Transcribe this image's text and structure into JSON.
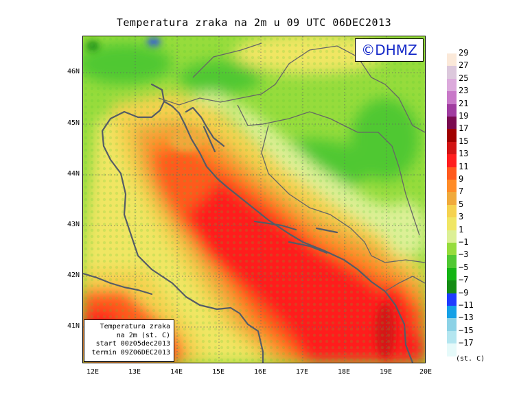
{
  "title": "Temperatura zraka na 2m u 09 UTC 06DEC2013",
  "logo": "©DHMZ",
  "info_box": {
    "line1": "Temperatura zraka",
    "line2": "na 2m (st. C)",
    "line3": "start 00z05dec2013",
    "line4": "termin 09Z06DEC2013"
  },
  "axes": {
    "longitude_labels": [
      "12E",
      "13E",
      "14E",
      "15E",
      "16E",
      "17E",
      "18E",
      "19E",
      "20E"
    ],
    "latitude_labels": [
      "46N",
      "45N",
      "44N",
      "43N",
      "42N",
      "41N"
    ]
  },
  "legend": {
    "unit": "(st. C)",
    "labels": [
      "29",
      "27",
      "25",
      "23",
      "21",
      "19",
      "17",
      "15",
      "13",
      "11",
      "9",
      "7",
      "5",
      "3",
      "1",
      "−1",
      "−3",
      "−5",
      "−7",
      "−9",
      "−11",
      "−13",
      "−15",
      "−17"
    ],
    "colors": [
      "#fbe9d9",
      "#dcc8dc",
      "#dcaadc",
      "#c878c8",
      "#a03ca0",
      "#7a0a50",
      "#a00000",
      "#d21414",
      "#ff1e1e",
      "#ff5a1e",
      "#ff8c28",
      "#f0aa3c",
      "#f5d250",
      "#f0e664",
      "#dcf096",
      "#96dc3c",
      "#50c832",
      "#14b414",
      "#148c14",
      "#1e3cff",
      "#14a0e6",
      "#8cd2e6",
      "#b4e6f0",
      "#e6fafa"
    ]
  }
}
